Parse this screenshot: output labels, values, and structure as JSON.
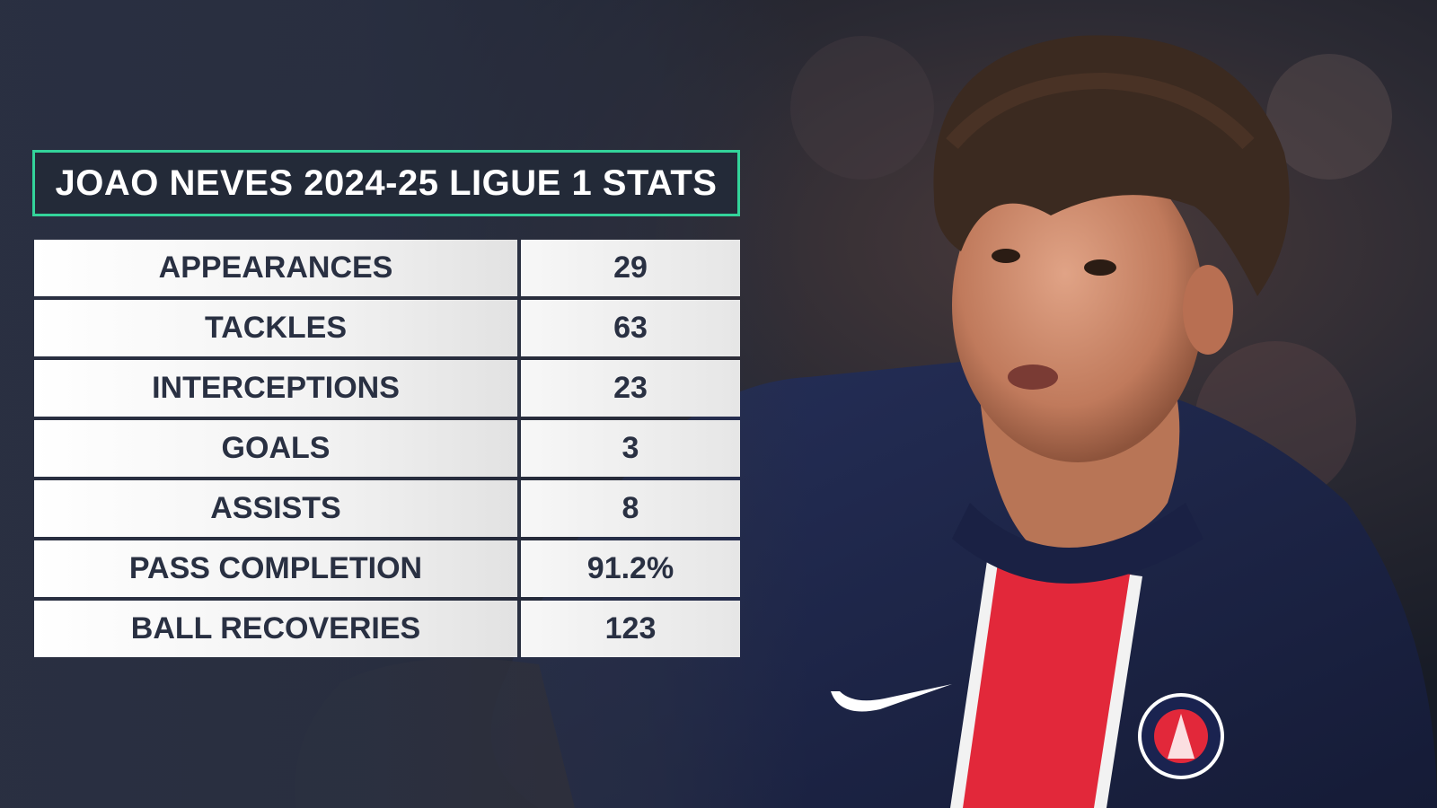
{
  "title": "JOAO NEVES 2024-25 LIGUE 1 STATS",
  "stats": [
    {
      "label": "APPEARANCES",
      "value": "29"
    },
    {
      "label": "TACKLES",
      "value": "63"
    },
    {
      "label": "INTERCEPTIONS",
      "value": "23"
    },
    {
      "label": "GOALS",
      "value": "3"
    },
    {
      "label": "ASSISTS",
      "value": "8"
    },
    {
      "label": "PASS COMPLETION",
      "value": "91.2%"
    },
    {
      "label": "BALL RECOVERIES",
      "value": "123"
    }
  ],
  "colors": {
    "accent": "#33d39a",
    "panel": "#232a38",
    "text_dark": "#293042",
    "jersey_navy": "#1d2547",
    "jersey_red": "#e2283a"
  },
  "icons": [
    "player-photo",
    "swoosh-logo",
    "club-crest"
  ]
}
